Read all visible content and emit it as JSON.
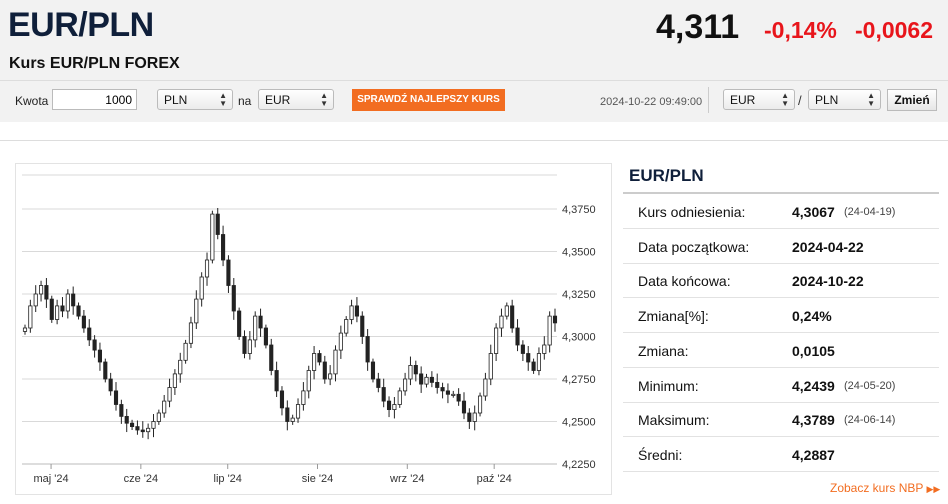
{
  "header": {
    "pair": "EUR/PLN",
    "subtitle": "Kurs EUR/PLN FOREX",
    "price": "4,311",
    "change_pct": "-0,14%",
    "change_abs": "-0,0062"
  },
  "converter": {
    "amount_label": "Kwota",
    "amount_value": "1000",
    "from_currency": "PLN",
    "na_label": "na",
    "to_currency": "EUR",
    "best_rate_button": "SPRAWDŹ NAJLEPSZY KURS",
    "timestamp": "2024-10-22 09:49:00",
    "pair_from": "EUR",
    "slash": "/",
    "pair_to": "PLN",
    "change_button": "Zmień"
  },
  "stats": {
    "title": "EUR/PLN",
    "rows": [
      {
        "label": "Kurs odniesienia:",
        "value": "4,3067",
        "date": "(24-04-19)"
      },
      {
        "label": "Data początkowa:",
        "value": "2024-04-22",
        "date": ""
      },
      {
        "label": "Data końcowa:",
        "value": "2024-10-22",
        "date": ""
      },
      {
        "label": "Zmiana[%]:",
        "value": "0,24%",
        "date": ""
      },
      {
        "label": "Zmiana:",
        "value": "0,0105",
        "date": ""
      },
      {
        "label": "Minimum:",
        "value": "4,2439",
        "date": "(24-05-20)"
      },
      {
        "label": "Maksimum:",
        "value": "4,3789",
        "date": "(24-06-14)"
      },
      {
        "label": "Średni:",
        "value": "4,2887",
        "date": ""
      }
    ],
    "nbp_link": "Zobacz kurs NBP",
    "nbp_icon": "double-chevron-right-icon"
  },
  "colors": {
    "accent": "#f26d21",
    "negative": "#e8151b",
    "title": "#0f1f3a"
  },
  "chart_data": {
    "type": "candlestick",
    "x_tick_labels": [
      "maj '24",
      "cze '24",
      "lip '24",
      "sie '24",
      "wrz '24",
      "paź '24"
    ],
    "y_tick_labels": [
      "4,3750",
      "4,3500",
      "4,3250",
      "4,3000",
      "4,2750",
      "4,2500",
      "4,2250"
    ],
    "y_ticks": [
      4.375,
      4.35,
      4.325,
      4.3,
      4.275,
      4.25,
      4.225
    ],
    "ylim": [
      4.225,
      4.395
    ],
    "x_start": "2024-04-22",
    "x_end": "2024-10-22",
    "grid": true,
    "closes": [
      4.305,
      4.318,
      4.325,
      4.33,
      4.322,
      4.31,
      4.318,
      4.315,
      4.325,
      4.318,
      4.312,
      4.305,
      4.298,
      4.292,
      4.285,
      4.275,
      4.268,
      4.26,
      4.253,
      4.249,
      4.247,
      4.245,
      4.244,
      4.246,
      4.25,
      4.255,
      4.262,
      4.27,
      4.278,
      4.286,
      4.296,
      4.308,
      4.322,
      4.335,
      4.345,
      4.372,
      4.36,
      4.345,
      4.33,
      4.315,
      4.3,
      4.29,
      4.298,
      4.312,
      4.305,
      4.295,
      4.28,
      4.268,
      4.258,
      4.25,
      4.252,
      4.26,
      4.268,
      4.28,
      4.29,
      4.285,
      4.275,
      4.278,
      4.292,
      4.302,
      4.31,
      4.318,
      4.312,
      4.3,
      4.285,
      4.275,
      4.27,
      4.262,
      4.257,
      4.26,
      4.268,
      4.275,
      4.283,
      4.278,
      4.272,
      4.276,
      4.273,
      4.27,
      4.268,
      4.266,
      4.266,
      4.262,
      4.255,
      4.25,
      4.255,
      4.265,
      4.275,
      4.29,
      4.305,
      4.312,
      4.318,
      4.305,
      4.295,
      4.29,
      4.285,
      4.28,
      4.29,
      4.295,
      4.312,
      4.308
    ]
  }
}
